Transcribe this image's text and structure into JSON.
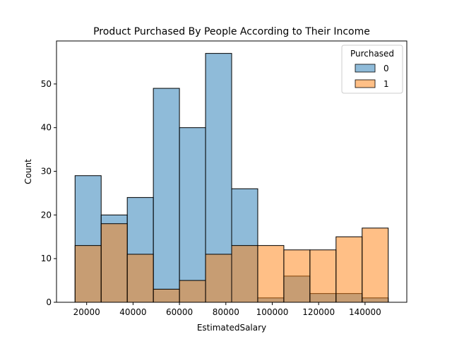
{
  "chart_data": {
    "type": "bar",
    "title": "Product Purchased By People According to Their Income",
    "xlabel": "EstimatedSalary",
    "ylabel": "Count",
    "bin_edges": [
      15000,
      26250,
      37500,
      48750,
      60000,
      71250,
      82500,
      93750,
      105000,
      116250,
      127500,
      138750,
      150000
    ],
    "xlim": [
      7000,
      158000
    ],
    "ylim": [
      0,
      59.85
    ],
    "xticks": [
      20000,
      40000,
      60000,
      80000,
      100000,
      120000,
      140000
    ],
    "yticks": [
      0,
      10,
      20,
      30,
      40,
      50
    ],
    "legend": {
      "title": "Purchased",
      "placement": "top-right"
    },
    "series": [
      {
        "name": "0",
        "color": "#1f77b4",
        "alpha": 0.5,
        "values": [
          29,
          20,
          24,
          49,
          40,
          57,
          26,
          1,
          6,
          2,
          2,
          1
        ]
      },
      {
        "name": "1",
        "color": "#ff7f0e",
        "alpha": 0.5,
        "values": [
          13,
          18,
          11,
          3,
          5,
          11,
          13,
          13,
          12,
          12,
          15,
          17
        ]
      }
    ]
  }
}
